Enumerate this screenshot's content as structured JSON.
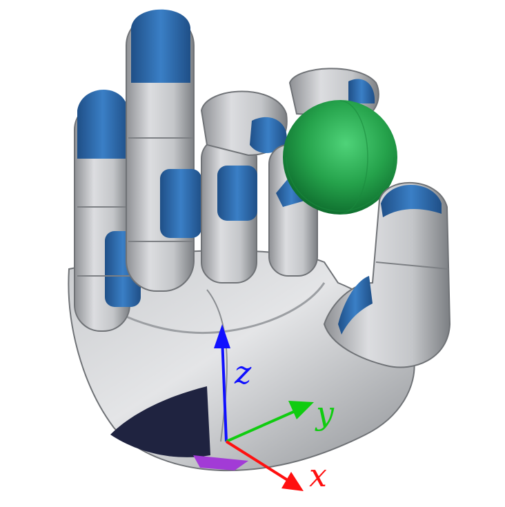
{
  "scene": {
    "object": "robotic-hand-grasping-sphere",
    "colors": {
      "metal_light": "#d9dadc",
      "metal_mid": "#a9abaf",
      "metal_dark": "#6f7276",
      "fingertip_blue": "#2f6fb4",
      "fingertip_blue_dark": "#1f4f87",
      "sphere_green": "#2fae55",
      "sphere_green_dark": "#127a35",
      "palm_pad": "#1f2340",
      "wrist_purple": "#a23bd6"
    }
  },
  "axes": {
    "z": {
      "label": "z",
      "color": "#1010ff"
    },
    "y": {
      "label": "y",
      "color": "#10cc10"
    },
    "x": {
      "label": "x",
      "color": "#ff1010"
    }
  }
}
